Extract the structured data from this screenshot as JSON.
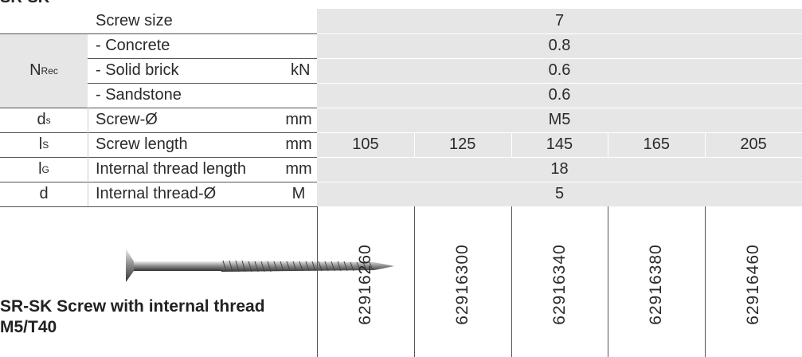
{
  "header": {
    "title": "SR-SK"
  },
  "table": {
    "screw_size": {
      "label": "Screw size",
      "value": 7
    },
    "n_rec": {
      "symbol": "N",
      "subscript": "Rec",
      "unit": "kN",
      "rows": [
        {
          "label": "- Concrete",
          "value": 0.8
        },
        {
          "label": "- Solid brick",
          "value": 0.6
        },
        {
          "label": "- Sandstone",
          "value": 0.6
        }
      ]
    },
    "rows": [
      {
        "symbol": "d",
        "subscript": "s",
        "label": "Screw-Ø",
        "unit": "mm",
        "values": [
          "M5"
        ]
      },
      {
        "symbol": "l",
        "subscript": "S",
        "label": "Screw length",
        "unit": "mm",
        "values": [
          105,
          125,
          145,
          165,
          205
        ]
      },
      {
        "symbol": "l",
        "subscript": "G",
        "label": "Internal thread length",
        "unit": "mm",
        "values": [
          18
        ]
      },
      {
        "symbol": "d",
        "label": "Internal thread-Ø",
        "unit": "M",
        "values": [
          5
        ]
      }
    ],
    "article_numbers": [
      62916260,
      62916300,
      62916340,
      62916380,
      62916460
    ]
  },
  "caption": "SR-SK Screw with internal thread M5/T40"
}
